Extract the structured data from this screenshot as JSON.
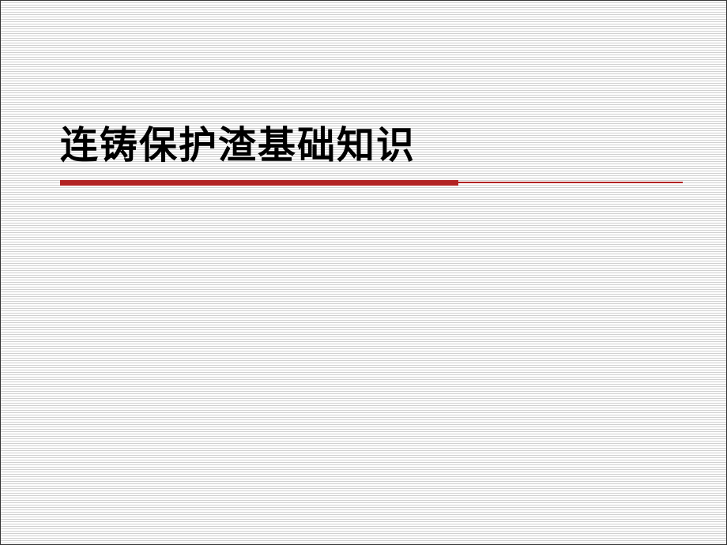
{
  "slide": {
    "title": "连铸保护渣基础知识",
    "title_color": "#000000",
    "title_fontsize": 48,
    "title_fontweight": "bold",
    "underline": {
      "thick_color": "#b22222",
      "thick_height": 7,
      "thick_width_percent": 64,
      "thin_color": "#b22222",
      "thin_height": 2,
      "thin_width_percent": 100
    },
    "background": {
      "base_color": "#ffffff",
      "stripe_color": "#d0d0d0",
      "stripe_spacing": 3
    }
  }
}
